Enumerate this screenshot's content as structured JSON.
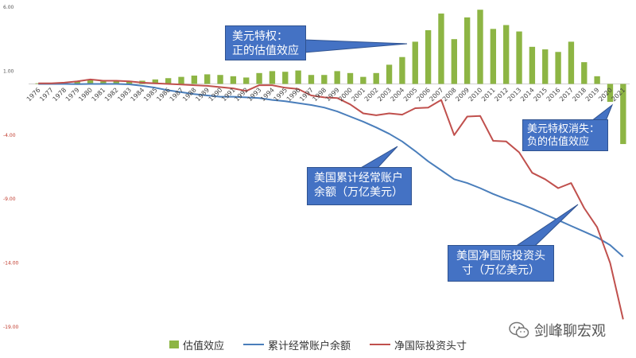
{
  "chart_data": {
    "type": "bar+line",
    "title": "",
    "xlabel": "",
    "ylabel": "",
    "ylim": [
      -19,
      6
    ],
    "yticks": [
      "6.00",
      "1.00",
      "-4.00",
      "-9.00",
      "-14.00",
      "-19.00"
    ],
    "ytick_values": [
      6,
      1,
      -4,
      -9,
      -14,
      -19
    ],
    "grid": false,
    "legend_position": "bottom",
    "categories": [
      "1976",
      "1977",
      "1978",
      "1979",
      "1980",
      "1981",
      "1982",
      "1983",
      "1984",
      "1985",
      "1986",
      "1987",
      "1988",
      "1989",
      "1990",
      "1991",
      "1992",
      "1993",
      "1994",
      "1995",
      "1996",
      "1997",
      "1998",
      "1999",
      "2000",
      "2001",
      "2002",
      "2003",
      "2004",
      "2005",
      "2006",
      "2007",
      "2008",
      "2009",
      "2010",
      "2011",
      "2012",
      "2013",
      "2014",
      "2015",
      "2016",
      "2017",
      "2018",
      "2019",
      "2020",
      "2021"
    ],
    "series": [
      {
        "name": "估值效应",
        "kind": "bar",
        "color": "#8db544",
        "values": [
          0.05,
          0.05,
          0.1,
          0.2,
          0.3,
          0.2,
          0.2,
          0.25,
          0.25,
          0.35,
          0.45,
          0.55,
          0.65,
          0.75,
          0.7,
          0.6,
          0.5,
          0.85,
          1.0,
          0.95,
          1.05,
          0.7,
          0.7,
          1.0,
          0.85,
          0.55,
          0.85,
          1.5,
          2.1,
          3.3,
          4.2,
          5.5,
          3.5,
          5.2,
          5.8,
          4.3,
          4.6,
          4.1,
          2.9,
          2.7,
          2.5,
          3.3,
          1.7,
          0.6,
          -1.4,
          -4.7
        ]
      },
      {
        "name": "累计经常账户余额",
        "kind": "line",
        "color": "#4a7ebb",
        "values": [
          0.0,
          0.0,
          0.0,
          -0.02,
          0.0,
          0.0,
          0.0,
          -0.03,
          -0.15,
          -0.3,
          -0.5,
          -0.65,
          -0.8,
          -0.9,
          -1.0,
          -1.0,
          -1.05,
          -1.1,
          -1.25,
          -1.35,
          -1.5,
          -1.65,
          -1.85,
          -2.15,
          -2.55,
          -2.95,
          -3.4,
          -3.9,
          -4.5,
          -5.25,
          -6.05,
          -6.75,
          -7.45,
          -7.75,
          -8.15,
          -8.6,
          -9.0,
          -9.35,
          -9.75,
          -10.2,
          -10.65,
          -11.1,
          -11.55,
          -12.0,
          -12.6,
          -13.5
        ]
      },
      {
        "name": "净国际投资头寸",
        "kind": "line",
        "color": "#c0504d",
        "values": [
          0.05,
          0.05,
          0.1,
          0.2,
          0.35,
          0.25,
          0.25,
          0.2,
          0.1,
          0.05,
          0.0,
          -0.05,
          -0.1,
          -0.15,
          -0.25,
          -0.35,
          -0.55,
          -0.1,
          -0.1,
          -0.3,
          -0.4,
          -0.9,
          -1.05,
          -1.1,
          -1.6,
          -2.3,
          -2.45,
          -2.3,
          -2.4,
          -1.9,
          -1.85,
          -1.25,
          -4.0,
          -2.55,
          -2.5,
          -4.45,
          -4.5,
          -5.35,
          -6.95,
          -7.45,
          -8.15,
          -7.75,
          -9.7,
          -11.2,
          -14.0,
          -18.4
        ]
      }
    ],
    "annotations": [
      {
        "id": "privilege",
        "lines": [
          "美元特权：",
          "正的估值效应"
        ]
      },
      {
        "id": "privilege-lost",
        "lines": [
          "美元特权消失：",
          "负的估值效应"
        ]
      },
      {
        "id": "cum-ca",
        "lines": [
          "美国累计经常账户",
          "余额（万亿美元）"
        ]
      },
      {
        "id": "niip",
        "lines": [
          "美国净国际投资头",
          "寸（万亿美元）"
        ]
      }
    ]
  },
  "watermark": {
    "text": "剑峰聊宏观",
    "icon": "wechat-icon"
  }
}
